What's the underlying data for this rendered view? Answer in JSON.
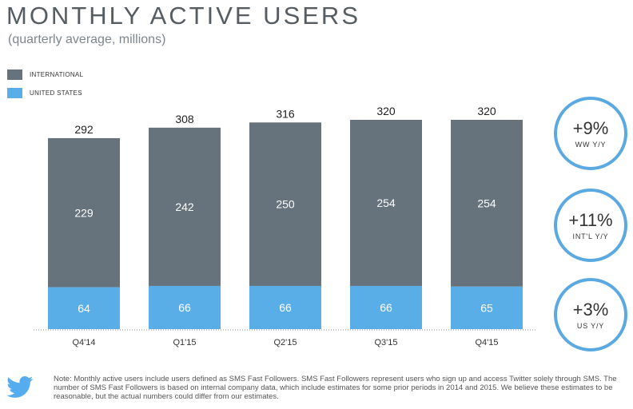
{
  "header": {
    "title": "MONTHLY ACTIVE USERS",
    "subtitle": "(quarterly average, millions)"
  },
  "legend": [
    {
      "label": "INTERNATIONAL",
      "color": "#66737d"
    },
    {
      "label": "UNITED STATES",
      "color": "#5aaee7"
    }
  ],
  "chart_data": {
    "type": "bar",
    "stacked": true,
    "categories": [
      "Q4'14",
      "Q1'15",
      "Q2'15",
      "Q3'15",
      "Q4'15"
    ],
    "series": [
      {
        "name": "UNITED STATES",
        "values": [
          64,
          66,
          66,
          66,
          65
        ],
        "color": "#5aaee7"
      },
      {
        "name": "INTERNATIONAL",
        "values": [
          229,
          242,
          250,
          254,
          254
        ],
        "color": "#66737d"
      }
    ],
    "totals": [
      292,
      308,
      316,
      320,
      320
    ],
    "ylim": [
      0,
      320
    ],
    "grid": false
  },
  "growth": [
    {
      "value": "+9%",
      "label": "WW Y/Y"
    },
    {
      "value": "+11%",
      "label": "INT'L Y/Y"
    },
    {
      "value": "+3%",
      "label": "US Y/Y"
    }
  ],
  "icons": {
    "brand": "twitter-bird-icon",
    "brand_color": "#55acee"
  },
  "footer": {
    "note": "Note: Monthly active users include users defined as SMS Fast Followers. SMS Fast Followers represent users who sign up and access Twitter solely through SMS. The number of SMS Fast Followers is based on internal company data, which include estimates for some prior periods in 2014 and 2015. We believe these estimates to be reasonable, but the actual numbers could differ from our estimates."
  }
}
